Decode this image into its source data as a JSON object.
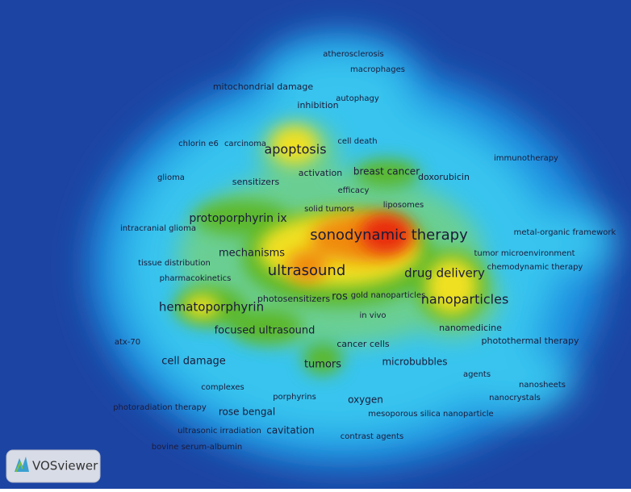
{
  "logo": "VOSviewer",
  "terms": [
    "atherosclerosis",
    "macrophages",
    "mitochondrial damage",
    "autophagy",
    "inhibition",
    "chlorin e6",
    "carcinoma",
    "apoptosis",
    "cell death",
    "immunotherapy",
    "activation",
    "breast cancer",
    "doxorubicin",
    "glioma",
    "sensitizers",
    "efficacy",
    "solid tumors",
    "liposomes",
    "protoporphyrin ix",
    "intracranial glioma",
    "sonodynamic therapy",
    "metal-organic framework",
    "mechanisms",
    "tumor microenvironment",
    "tissue distribution",
    "ultrasound",
    "chemodynamic therapy",
    "drug delivery",
    "pharmacokinetics",
    "photosensitizers",
    "ros",
    "gold nanoparticles",
    "nanoparticles",
    "hematoporphyrin",
    "in vivo",
    "focused ultrasound",
    "nanomedicine",
    "atx-70",
    "photothermal therapy",
    "cancer cells",
    "cell damage",
    "microbubbles",
    "tumors",
    "agents",
    "nanosheets",
    "complexes",
    "porphyrins",
    "nanocrystals",
    "oxygen",
    "photoradiation therapy",
    "rose bengal",
    "mesoporous silica nanoparticle",
    "ultrasonic irradiation",
    "cavitation",
    "contrast agents",
    "bovine serum-albumin"
  ]
}
